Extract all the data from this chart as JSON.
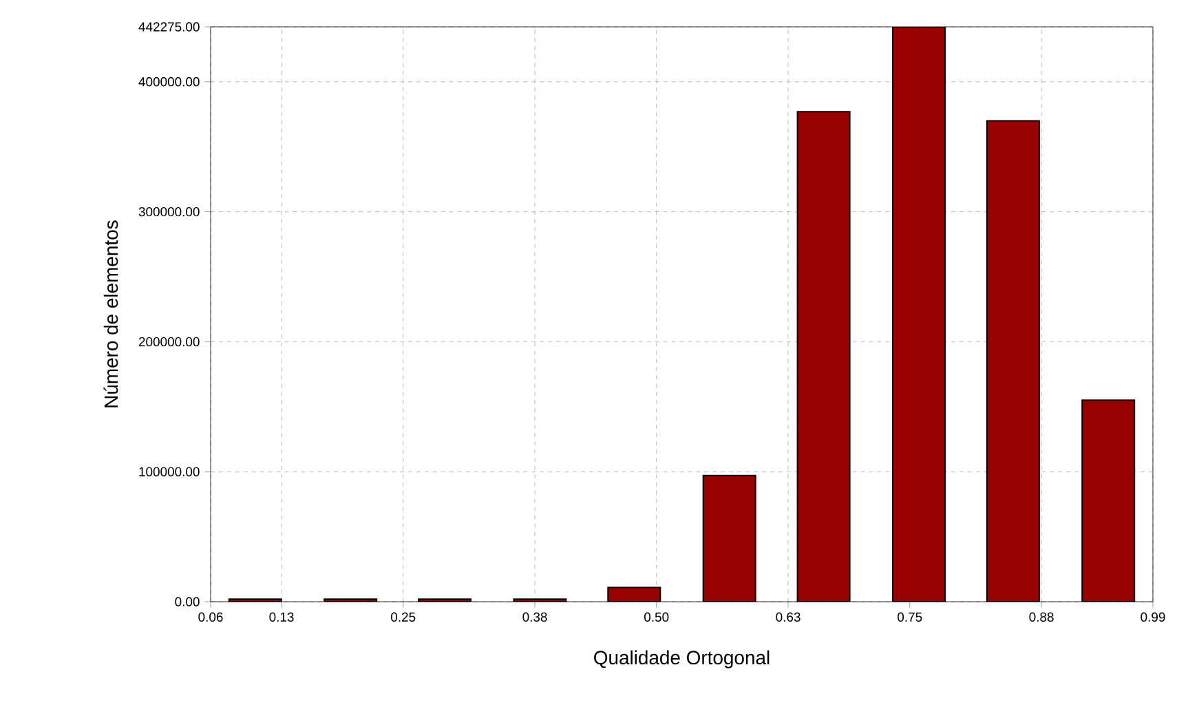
{
  "chart_data": {
    "type": "bar",
    "xlabel": "Qualidade Ortogonal",
    "ylabel": "Número de elementos",
    "x": [
      0.104,
      0.198,
      0.291,
      0.385,
      0.478,
      0.572,
      0.665,
      0.759,
      0.852,
      0.946
    ],
    "values": [
      2000,
      2000,
      2000,
      2000,
      11000,
      97000,
      377000,
      442275,
      370000,
      155000
    ],
    "color": "#990000",
    "xlim": [
      0.06,
      0.99
    ],
    "xticks": [
      {
        "value": 0.06,
        "label": "0.06"
      },
      {
        "value": 0.13,
        "label": "0.13"
      },
      {
        "value": 0.25,
        "label": "0.25"
      },
      {
        "value": 0.38,
        "label": "0.38"
      },
      {
        "value": 0.5,
        "label": "0.50"
      },
      {
        "value": 0.63,
        "label": "0.63"
      },
      {
        "value": 0.75,
        "label": "0.75"
      },
      {
        "value": 0.88,
        "label": "0.88"
      },
      {
        "value": 0.99,
        "label": "0.99"
      }
    ],
    "ylim": [
      0,
      442275
    ],
    "yticks": [
      {
        "value": 0,
        "label": "0.00"
      },
      {
        "value": 100000,
        "label": "100000.00"
      },
      {
        "value": 200000,
        "label": "200000.00"
      },
      {
        "value": 300000,
        "label": "300000.00"
      },
      {
        "value": 400000,
        "label": "400000.00"
      },
      {
        "value": 442275,
        "label": "442275.00"
      }
    ],
    "grid": true
  }
}
